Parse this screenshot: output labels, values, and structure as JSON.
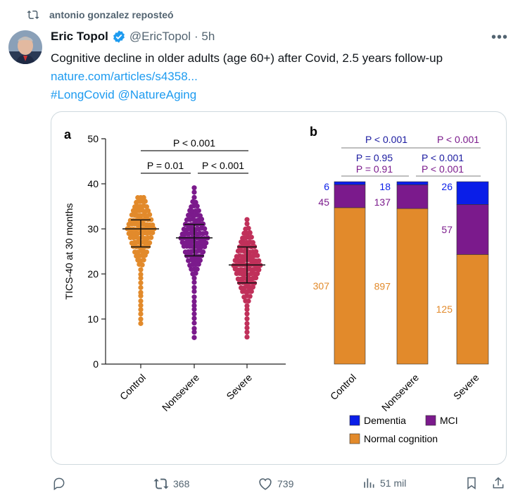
{
  "repost": {
    "label": "antonio gonzalez reposteó",
    "icon": "repost-icon"
  },
  "author": {
    "name": "Eric Topol",
    "handle": "@EricTopol",
    "time": "· 5h",
    "verified": true
  },
  "tweet": {
    "text": "Cognitive decline in older adults (age 60+) after Covid, 2.5 years follow-up",
    "link": "nature.com/articles/s4358...",
    "hashtags": "#LongCovid @NatureAging"
  },
  "chart_data": [
    {
      "type": "scatter",
      "panel_label": "a",
      "ylabel": "TICS-40 at 30 months",
      "ylim": [
        0,
        50
      ],
      "yticks": [
        0,
        10,
        20,
        30,
        40,
        50
      ],
      "categories": [
        "Control",
        "Nonsevere",
        "Severe"
      ],
      "colors": [
        "#e28a2b",
        "#7b1a8c",
        "#c0305a"
      ],
      "summary": [
        {
          "group": "Control",
          "median": 30,
          "q1": 26,
          "q3": 32
        },
        {
          "group": "Nonsevere",
          "median": 28,
          "q1": 24,
          "q3": 31
        },
        {
          "group": "Severe",
          "median": 22,
          "q1": 18,
          "q3": 26
        }
      ],
      "annotations": [
        "P < 0.001",
        "P = 0.01",
        "P < 0.001"
      ]
    },
    {
      "type": "bar",
      "stacked": true,
      "panel_label": "b",
      "categories": [
        "Control",
        "Nonsevere",
        "Severe"
      ],
      "series": [
        {
          "name": "Normal cognition",
          "color": "#e28a2b",
          "values": [
            307,
            897,
            125
          ]
        },
        {
          "name": "MCI",
          "color": "#7b1a8c",
          "values": [
            45,
            137,
            57
          ]
        },
        {
          "name": "Dementia",
          "color": "#0a1ee8",
          "values": [
            6,
            18,
            26
          ]
        }
      ],
      "annotations": {
        "top_left": "P < 0.001",
        "top_right": "P < 0.001",
        "mid_left_1": "P = 0.95",
        "mid_left_2": "P = 0.91",
        "mid_right_1": "P < 0.001",
        "mid_right_2": "P < 0.001"
      },
      "legend": [
        "Dementia",
        "MCI",
        "Normal cognition"
      ],
      "legend_position": "bottom"
    }
  ],
  "actions": {
    "reply": "",
    "reposts": "368",
    "likes": "739",
    "views": "51 mil"
  }
}
